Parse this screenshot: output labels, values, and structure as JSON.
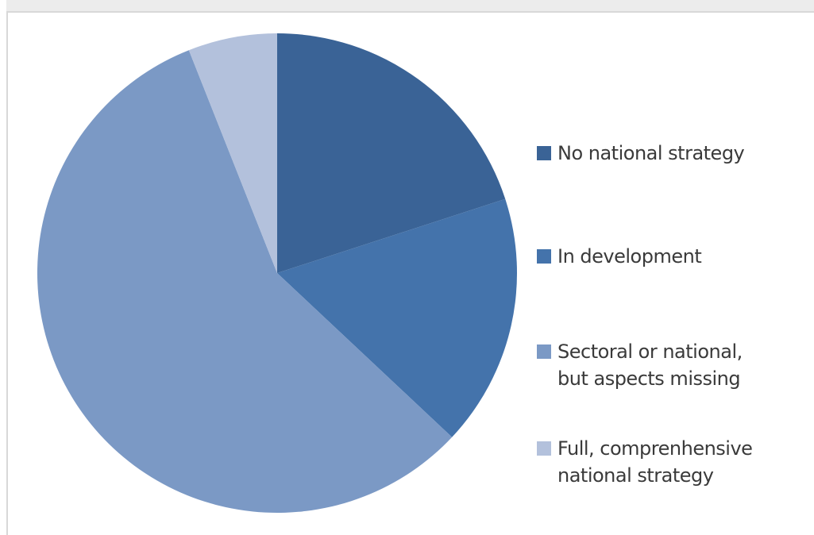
{
  "chart_data": {
    "type": "pie",
    "title": "",
    "start_angle_deg": 0,
    "direction": "clockwise",
    "slices": [
      {
        "label": "No national strategy",
        "value": 20,
        "color": "#3a6396"
      },
      {
        "label": "In development",
        "value": 17,
        "color": "#4473ab"
      },
      {
        "label": "Sectoral or national,\nbut aspects missing",
        "value": 57,
        "color": "#7b99c5"
      },
      {
        "label": "Full, comprenhensive\nnational strategy",
        "value": 6,
        "color": "#b3c1dc"
      }
    ],
    "legend": {
      "position": "right",
      "items": [
        "No national strategy",
        "In development",
        "Sectoral or national,\nbut aspects missing",
        "Full, comprenhensive\nnational strategy"
      ]
    }
  }
}
